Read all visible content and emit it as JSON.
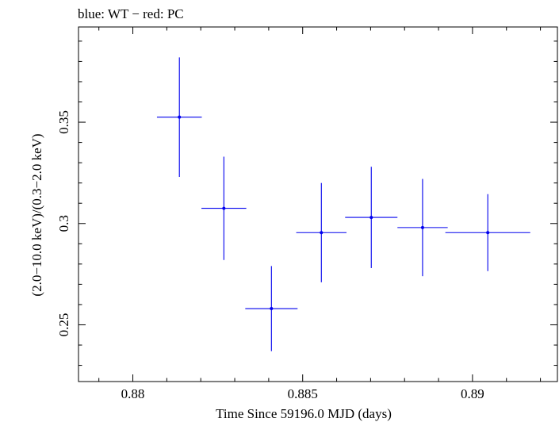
{
  "chart_data": {
    "type": "scatter",
    "title": "blue: WT − red: PC",
    "xlabel": "Time Since 59196.0 MJD (days)",
    "ylabel": "(2.0−10.0 keV)/(0.3−2.0 keV)",
    "xlim": [
      0.8784,
      0.8925
    ],
    "ylim": [
      0.222,
      0.397
    ],
    "x_ticks": [
      0.88,
      0.885,
      0.89
    ],
    "x_tick_labels": [
      "0.88",
      "0.885",
      "0.89"
    ],
    "y_ticks": [
      0.25,
      0.3,
      0.35
    ],
    "y_tick_labels": [
      "0.25",
      "0.3",
      "0.35"
    ],
    "x_minor_step": 0.001,
    "y_minor_step": 0.01,
    "grid": false,
    "series": [
      {
        "color": "#0000ee",
        "points": [
          {
            "x": 0.88137,
            "xerr": 0.00066,
            "y": 0.3525,
            "yerr_low": 0.0295,
            "yerr_high": 0.0295
          },
          {
            "x": 0.88268,
            "xerr": 0.00066,
            "y": 0.3075,
            "yerr_low": 0.0255,
            "yerr_high": 0.0255
          },
          {
            "x": 0.88408,
            "xerr": 0.00077,
            "y": 0.258,
            "yerr_low": 0.021,
            "yerr_high": 0.021
          },
          {
            "x": 0.88555,
            "xerr": 0.00074,
            "y": 0.2955,
            "yerr_low": 0.0245,
            "yerr_high": 0.0245
          },
          {
            "x": 0.88702,
            "xerr": 0.00077,
            "y": 0.303,
            "yerr_low": 0.025,
            "yerr_high": 0.025
          },
          {
            "x": 0.88853,
            "xerr": 0.00074,
            "y": 0.298,
            "yerr_low": 0.024,
            "yerr_high": 0.024
          },
          {
            "x": 0.89045,
            "xerr": 0.00125,
            "y": 0.2955,
            "yerr_low": 0.019,
            "yerr_high": 0.019
          }
        ]
      }
    ]
  }
}
